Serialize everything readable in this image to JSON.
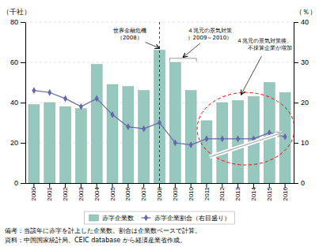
{
  "chart_data": {
    "type": "bar",
    "categories": [
      "2000",
      "2001",
      "2002",
      "2003",
      "2004",
      "2005",
      "2006",
      "2007",
      "2008",
      "2009",
      "2010",
      "2011",
      "2012",
      "2013",
      "2014",
      "2015",
      "2016"
    ],
    "series": [
      {
        "name": "赤字企業数",
        "type": "bar",
        "color": "#96c8be",
        "values": [
          39,
          40,
          38,
          37,
          59,
          49,
          48,
          46,
          66,
          60,
          46,
          31,
          40,
          41,
          43,
          50,
          45
        ]
      },
      {
        "name": "赤字企業割合（右目盛り）",
        "type": "line",
        "axis": "y2",
        "color": "#6666aa",
        "marker": "diamond",
        "values": [
          23,
          22.5,
          21,
          19,
          21,
          17,
          14,
          13.5,
          15,
          10,
          9.5,
          11,
          11,
          11,
          11,
          12.5,
          11.5
        ]
      }
    ],
    "ylabel": "（千社）",
    "y2label": "（％）",
    "ylim": [
      0,
      80
    ],
    "yticks": [
      0,
      20,
      40,
      60,
      80
    ],
    "y2lim": [
      0,
      40
    ],
    "y2ticks": [
      0,
      10,
      20,
      30,
      40
    ],
    "grid": true,
    "legend": "bottom",
    "annotations": [
      "世界金融危機\n（2008）",
      "４兆元の景気対策\n）2009～2010）",
      "４兆元の景気対策後、\n不採算企業が増加"
    ],
    "notes": [
      "備考：当該年に赤字を計上した企業数。割合は企業数ベースで計算。",
      "資料：中国国家統計局、CEIC database から経済産業省作成。"
    ]
  }
}
